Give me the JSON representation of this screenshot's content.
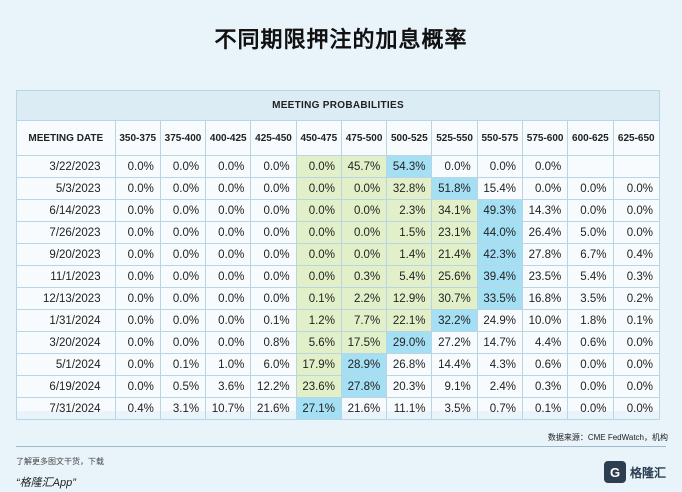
{
  "page": {
    "title": "不同期限押注的加息概率"
  },
  "table": {
    "group_header": "MEETING PROBABILITIES",
    "columns": [
      "MEETING DATE",
      "350-375",
      "375-400",
      "400-425",
      "425-450",
      "450-475",
      "475-500",
      "500-525",
      "525-550",
      "550-575",
      "575-600",
      "600-625",
      "625-650"
    ],
    "rows": [
      [
        "3/22/2023",
        "0.0%",
        "0.0%",
        "0.0%",
        "0.0%",
        "0.0%",
        "45.7%",
        "54.3%",
        "0.0%",
        "0.0%",
        "0.0%",
        "",
        ""
      ],
      [
        "5/3/2023",
        "0.0%",
        "0.0%",
        "0.0%",
        "0.0%",
        "0.0%",
        "0.0%",
        "32.8%",
        "51.8%",
        "15.4%",
        "0.0%",
        "0.0%",
        "0.0%"
      ],
      [
        "6/14/2023",
        "0.0%",
        "0.0%",
        "0.0%",
        "0.0%",
        "0.0%",
        "0.0%",
        "2.3%",
        "34.1%",
        "49.3%",
        "14.3%",
        "0.0%",
        "0.0%"
      ],
      [
        "7/26/2023",
        "0.0%",
        "0.0%",
        "0.0%",
        "0.0%",
        "0.0%",
        "0.0%",
        "1.5%",
        "23.1%",
        "44.0%",
        "26.4%",
        "5.0%",
        "0.0%"
      ],
      [
        "9/20/2023",
        "0.0%",
        "0.0%",
        "0.0%",
        "0.0%",
        "0.0%",
        "0.0%",
        "1.4%",
        "21.4%",
        "42.3%",
        "27.8%",
        "6.7%",
        "0.4%"
      ],
      [
        "11/1/2023",
        "0.0%",
        "0.0%",
        "0.0%",
        "0.0%",
        "0.0%",
        "0.3%",
        "5.4%",
        "25.6%",
        "39.4%",
        "23.5%",
        "5.4%",
        "0.3%"
      ],
      [
        "12/13/2023",
        "0.0%",
        "0.0%",
        "0.0%",
        "0.0%",
        "0.1%",
        "2.2%",
        "12.9%",
        "30.7%",
        "33.5%",
        "16.8%",
        "3.5%",
        "0.2%"
      ],
      [
        "1/31/2024",
        "0.0%",
        "0.0%",
        "0.0%",
        "0.1%",
        "1.2%",
        "7.7%",
        "22.1%",
        "32.2%",
        "24.9%",
        "10.0%",
        "1.8%",
        "0.1%"
      ],
      [
        "3/20/2024",
        "0.0%",
        "0.0%",
        "0.0%",
        "0.8%",
        "5.6%",
        "17.5%",
        "29.0%",
        "27.2%",
        "14.7%",
        "4.4%",
        "0.6%",
        "0.0%"
      ],
      [
        "5/1/2024",
        "0.0%",
        "0.1%",
        "1.0%",
        "6.0%",
        "17.9%",
        "28.9%",
        "26.8%",
        "14.4%",
        "4.3%",
        "0.6%",
        "0.0%",
        "0.0%"
      ],
      [
        "6/19/2024",
        "0.0%",
        "0.5%",
        "3.6%",
        "12.2%",
        "23.6%",
        "27.8%",
        "20.3%",
        "9.1%",
        "2.4%",
        "0.3%",
        "0.0%",
        "0.0%"
      ],
      [
        "7/31/2024",
        "0.4%",
        "3.1%",
        "10.7%",
        "21.6%",
        "27.1%",
        "21.6%",
        "11.1%",
        "3.5%",
        "0.7%",
        "0.1%",
        "0.0%",
        "0.0%"
      ]
    ],
    "green_from_col": 5,
    "green_to_col": {
      "3/22/2023": 6,
      "5/3/2023": 8,
      "6/14/2023": 8,
      "7/26/2023": 8,
      "9/20/2023": 8,
      "11/1/2023": 8,
      "12/13/2023": 8,
      "1/31/2024": 8,
      "3/20/2024": 6,
      "5/1/2024": 6,
      "6/19/2024": 6,
      "7/31/2024": 5
    },
    "max_col": {
      "3/22/2023": 7,
      "5/3/2023": 8,
      "6/14/2023": 9,
      "7/26/2023": 9,
      "9/20/2023": 9,
      "11/1/2023": 9,
      "12/13/2023": 9,
      "1/31/2024": 8,
      "3/20/2024": 7,
      "5/1/2024": 6,
      "6/19/2024": 6,
      "7/31/2024": 5
    }
  },
  "source": "数据来源：CME FedWatch，机构",
  "footer": {
    "line1": "了解更多图文干货，下载",
    "line2": "“格隆汇App”",
    "logo_mark": "G",
    "logo_text": "格隆汇"
  },
  "colors": {
    "background": "#e8f3fa",
    "green": "#e2f0c9",
    "cyan": "#a4dff4",
    "border": "#b9d4e2"
  }
}
